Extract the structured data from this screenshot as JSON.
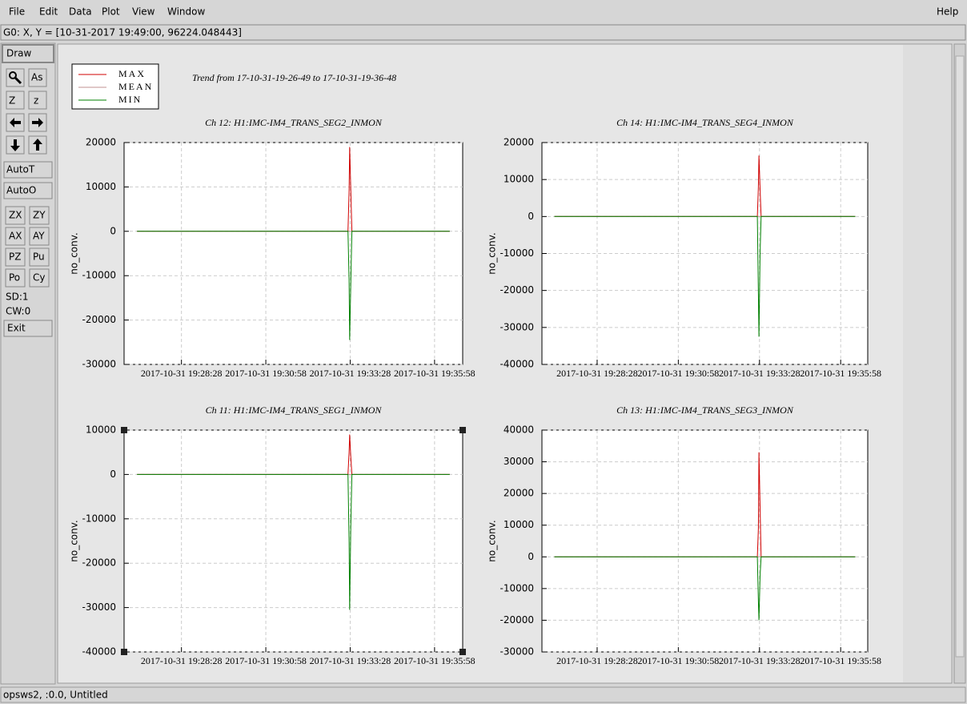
{
  "menu": [
    "File",
    "Edit",
    "Data",
    "Plot",
    "View",
    "Window"
  ],
  "help": "Help",
  "status": "G0: X, Y = [10-31-2017 19:49:00, 96224.048443]",
  "toolbar": {
    "draw": "Draw",
    "icons": [
      "As",
      "Z",
      "z"
    ],
    "buttons": [
      "AutoT",
      "AutoO"
    ],
    "grid": [
      "ZX",
      "ZY",
      "AX",
      "AY",
      "PZ",
      "Pu",
      "Po",
      "Cy"
    ],
    "sd": "SD:1",
    "cw": "CW:0",
    "exit": "Exit"
  },
  "footer": "opsws2, :0.0, Untitled",
  "title": "Trend from 17-10-31-19-26-49 to 17-10-31-19-36-48",
  "chart_data": [
    {
      "type": "line",
      "title": "Ch 12: H1:IMC-IM4_TRANS_SEG2_INMON",
      "ylabel": "no_conv.",
      "x": [
        "2017-10-31 19:27:09",
        "2017-10-31 19:33:24",
        "2017-10-31 19:33:26",
        "2017-10-31 19:33:27",
        "2017-10-31 19:33:29",
        "2017-10-31 19:33:31",
        "2017-10-31 19:36:25"
      ],
      "xlim": [
        "2017-10-31 19:26:46",
        "2017-10-31 19:36:48"
      ],
      "xticks": [
        "2017-10-31 19:28:28",
        "2017-10-31 19:30:58",
        "2017-10-31 19:33:28",
        "2017-10-31 19:35:58"
      ],
      "ylim": [
        -30000,
        20000
      ],
      "yticks": [
        -30000,
        -20000,
        -10000,
        0,
        10000,
        20000
      ],
      "grid": true,
      "series": [
        {
          "name": "MAX",
          "color": "#d00000",
          "values": [
            0,
            0,
            9000,
            19000,
            9500,
            0,
            0
          ]
        },
        {
          "name": "MEAN",
          "color": "#c09090",
          "values": [
            0,
            0,
            0,
            0,
            0,
            0,
            0
          ]
        },
        {
          "name": "MIN",
          "color": "#008000",
          "values": [
            0,
            0,
            -11000,
            -24500,
            -12000,
            0,
            0
          ]
        }
      ]
    },
    {
      "type": "line",
      "title": "Ch 14: H1:IMC-IM4_TRANS_SEG4_INMON",
      "ylabel": "no_conv.",
      "x": [
        "2017-10-31 19:27:09",
        "2017-10-31 19:33:24",
        "2017-10-31 19:33:26",
        "2017-10-31 19:33:27",
        "2017-10-31 19:33:29",
        "2017-10-31 19:33:31",
        "2017-10-31 19:36:25"
      ],
      "xlim": [
        "2017-10-31 19:26:46",
        "2017-10-31 19:36:48"
      ],
      "xticks": [
        "2017-10-31 19:28:28",
        "2017-10-31 19:30:58",
        "2017-10-31 19:33:28",
        "2017-10-31 19:35:58"
      ],
      "ylim": [
        -40000,
        20000
      ],
      "yticks": [
        -40000,
        -30000,
        -20000,
        -10000,
        0,
        10000,
        20000
      ],
      "grid": true,
      "series": [
        {
          "name": "MAX",
          "color": "#d00000",
          "values": [
            0,
            0,
            8000,
            16500,
            7500,
            0,
            0
          ]
        },
        {
          "name": "MEAN",
          "color": "#c09090",
          "values": [
            0,
            0,
            0,
            0,
            0,
            0,
            0
          ]
        },
        {
          "name": "MIN",
          "color": "#008000",
          "values": [
            0,
            0,
            -21000,
            -32500,
            -10000,
            0,
            0
          ]
        }
      ]
    },
    {
      "type": "line",
      "title": "Ch 11: H1:IMC-IM4_TRANS_SEG1_INMON",
      "ylabel": "no_conv.",
      "x": [
        "2017-10-31 19:27:09",
        "2017-10-31 19:33:24",
        "2017-10-31 19:33:26",
        "2017-10-31 19:33:27",
        "2017-10-31 19:33:29",
        "2017-10-31 19:33:31",
        "2017-10-31 19:36:25"
      ],
      "xlim": [
        "2017-10-31 19:26:46",
        "2017-10-31 19:36:48"
      ],
      "xticks": [
        "2017-10-31 19:28:28",
        "2017-10-31 19:30:58",
        "2017-10-31 19:33:28",
        "2017-10-31 19:35:58"
      ],
      "ylim": [
        -40000,
        10000
      ],
      "yticks": [
        -40000,
        -30000,
        -20000,
        -10000,
        0,
        10000
      ],
      "grid": true,
      "series": [
        {
          "name": "MAX",
          "color": "#d00000",
          "values": [
            0,
            0,
            5000,
            9000,
            4000,
            0,
            0
          ]
        },
        {
          "name": "MEAN",
          "color": "#c09090",
          "values": [
            0,
            0,
            0,
            0,
            0,
            0,
            0
          ]
        },
        {
          "name": "MIN",
          "color": "#008000",
          "values": [
            0,
            0,
            -15000,
            -30500,
            -12000,
            0,
            0
          ]
        }
      ]
    },
    {
      "type": "line",
      "title": "Ch 13: H1:IMC-IM4_TRANS_SEG3_INMON",
      "ylabel": "no_conv.",
      "x": [
        "2017-10-31 19:27:09",
        "2017-10-31 19:33:24",
        "2017-10-31 19:33:26",
        "2017-10-31 19:33:27",
        "2017-10-31 19:33:29",
        "2017-10-31 19:33:31",
        "2017-10-31 19:36:25"
      ],
      "xlim": [
        "2017-10-31 19:26:46",
        "2017-10-31 19:36:48"
      ],
      "xticks": [
        "2017-10-31 19:28:28",
        "2017-10-31 19:30:58",
        "2017-10-31 19:33:28",
        "2017-10-31 19:35:58"
      ],
      "ylim": [
        -30000,
        40000
      ],
      "yticks": [
        -30000,
        -20000,
        -10000,
        0,
        10000,
        20000,
        30000,
        40000
      ],
      "grid": true,
      "series": [
        {
          "name": "MAX",
          "color": "#d00000",
          "values": [
            0,
            0,
            9000,
            33000,
            16000,
            0,
            0
          ]
        },
        {
          "name": "MEAN",
          "color": "#c09090",
          "values": [
            0,
            0,
            0,
            0,
            0,
            0,
            0
          ]
        },
        {
          "name": "MIN",
          "color": "#008000",
          "values": [
            0,
            0,
            -14000,
            -20000,
            -6000,
            0,
            0
          ]
        }
      ]
    }
  ]
}
